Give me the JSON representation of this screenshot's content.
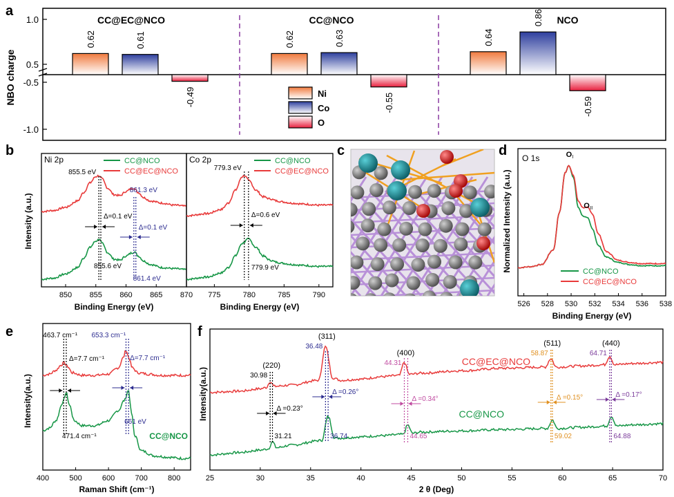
{
  "colors": {
    "red": "#e83a3a",
    "green": "#169646",
    "navy": "#2b2b8f",
    "pink": "#c04aa0",
    "orange": "#e09020",
    "purple": "#7a3a9a",
    "ni_top": "#f07a3e",
    "co_top": "#2e3f9e",
    "o_top": "#e8203e",
    "bond_orange": "#f0a020",
    "bond_purple": "#b890d8",
    "atom_gray": "#707070",
    "atom_teal": "#11828c",
    "atom_red": "#dd2020"
  },
  "chart_data": [
    {
      "id": "a",
      "panel_label": "a",
      "type": "bar",
      "ylabel": "NBO charge",
      "y_ticks": [
        "1.0",
        "0.5",
        "-0.5",
        "-1.0"
      ],
      "groups": [
        {
          "name": "CC@EC@NCO",
          "values": [
            {
              "el": "Ni",
              "v": 0.62,
              "label": "0.62"
            },
            {
              "el": "Co",
              "v": 0.61,
              "label": "0.61"
            },
            {
              "el": "O",
              "v": -0.49,
              "label": "-0.49"
            }
          ]
        },
        {
          "name": "CC@NCO",
          "values": [
            {
              "el": "Ni",
              "v": 0.62,
              "label": "0.62"
            },
            {
              "el": "Co",
              "v": 0.63,
              "label": "0.63"
            },
            {
              "el": "O",
              "v": -0.55,
              "label": "-0.55"
            }
          ]
        },
        {
          "name": "NCO",
          "values": [
            {
              "el": "Ni",
              "v": 0.64,
              "label": "0.64"
            },
            {
              "el": "Co",
              "v": 0.86,
              "label": "0.86"
            },
            {
              "el": "O",
              "v": -0.59,
              "label": "-0.59"
            }
          ]
        }
      ],
      "legend": [
        "Ni",
        "Co",
        "O"
      ]
    },
    {
      "id": "b1",
      "panel_label": "b",
      "type": "line",
      "title": "Ni 2p",
      "xlabel": "Binding Energy (eV)",
      "ylabel": "Intensity (a.u.)",
      "xlim": [
        846,
        870
      ],
      "x_ticks": [
        850,
        855,
        860,
        865,
        870
      ],
      "legend": [
        "CC@NCO",
        "CC@EC@NCO"
      ],
      "annotations": [
        "855.5 eV",
        "861.3 eV",
        "Δ=0.1 eV",
        "Δ=0.1 eV",
        "855.6 eV",
        "861.4 eV"
      ],
      "series": [
        {
          "name": "CC@EC@NCO",
          "x": [
            846,
            848,
            850,
            852,
            853,
            854,
            855,
            855.5,
            856,
            857,
            858,
            859,
            860,
            861,
            861.3,
            862,
            863,
            864,
            866,
            868,
            870
          ],
          "y": [
            0.66,
            0.67,
            0.7,
            0.76,
            0.84,
            0.93,
            0.99,
            1.0,
            0.97,
            0.88,
            0.82,
            0.81,
            0.85,
            0.88,
            0.88,
            0.84,
            0.79,
            0.76,
            0.74,
            0.72,
            0.71
          ]
        },
        {
          "name": "CC@NCO",
          "x": [
            846,
            848,
            850,
            852,
            853,
            854,
            855,
            855.6,
            856,
            857,
            858,
            859,
            860,
            861,
            861.4,
            862,
            863,
            864,
            866,
            868,
            870
          ],
          "y": [
            0.02,
            0.03,
            0.07,
            0.13,
            0.22,
            0.32,
            0.38,
            0.4,
            0.36,
            0.27,
            0.21,
            0.2,
            0.24,
            0.27,
            0.28,
            0.24,
            0.19,
            0.16,
            0.13,
            0.12,
            0.11
          ]
        }
      ]
    },
    {
      "id": "b2",
      "type": "line",
      "title": "Co 2p",
      "xlabel": "Binding Energy (eV)",
      "xlim": [
        771,
        792
      ],
      "x_ticks": [
        775,
        780,
        785,
        790
      ],
      "legend": [
        "CC@NCO",
        "CC@EC@NCO"
      ],
      "annotations": [
        "779.3 eV",
        "Δ=0.6 eV",
        "779.9 eV"
      ],
      "series": [
        {
          "name": "CC@EC@NCO",
          "x": [
            771,
            774,
            776,
            777,
            778,
            779,
            779.3,
            780,
            781,
            782,
            783,
            784,
            785,
            786,
            788,
            790,
            792
          ],
          "y": [
            0.62,
            0.64,
            0.68,
            0.74,
            0.86,
            0.99,
            1.0,
            0.95,
            0.86,
            0.8,
            0.78,
            0.76,
            0.75,
            0.74,
            0.73,
            0.72,
            0.72
          ]
        },
        {
          "name": "CC@NCO",
          "x": [
            771,
            774,
            776,
            777,
            778,
            779,
            779.9,
            781,
            782,
            783,
            784,
            785,
            786,
            788,
            790,
            792
          ],
          "y": [
            0.02,
            0.04,
            0.08,
            0.13,
            0.24,
            0.36,
            0.4,
            0.32,
            0.24,
            0.2,
            0.18,
            0.17,
            0.16,
            0.15,
            0.14,
            0.14
          ]
        }
      ]
    },
    {
      "id": "d",
      "panel_label": "d",
      "type": "line",
      "title": "O 1s",
      "xlabel": "Binding Energy (eV)",
      "ylabel": "Normalized Intensity (a.u.)",
      "xlim": [
        525.5,
        538
      ],
      "x_ticks": [
        526,
        528,
        530,
        532,
        534,
        536,
        538
      ],
      "peak_labels": [
        "O",
        "O"
      ],
      "peak_subscripts": [
        "I",
        "II"
      ],
      "legend": [
        "CC@NCO",
        "CC@EC@NCO"
      ],
      "series": [
        {
          "name": "CC@NCO",
          "x": [
            525.5,
            526.5,
            527.5,
            528.5,
            529,
            529.5,
            529.8,
            530.2,
            530.6,
            531,
            531.4,
            531.8,
            532.3,
            533,
            534,
            535,
            536,
            537,
            538
          ],
          "y": [
            0.03,
            0.04,
            0.06,
            0.2,
            0.55,
            0.93,
            1.0,
            0.88,
            0.6,
            0.52,
            0.5,
            0.4,
            0.24,
            0.13,
            0.08,
            0.06,
            0.05,
            0.05,
            0.05
          ]
        },
        {
          "name": "CC@EC@NCO",
          "x": [
            525.5,
            526.5,
            527.5,
            528.5,
            529,
            529.5,
            529.8,
            530.2,
            530.6,
            531,
            531.4,
            531.8,
            532.3,
            533,
            534,
            535,
            536,
            537,
            538
          ],
          "y": [
            0.03,
            0.04,
            0.06,
            0.2,
            0.55,
            0.93,
            1.0,
            0.9,
            0.66,
            0.6,
            0.6,
            0.54,
            0.35,
            0.18,
            0.1,
            0.08,
            0.07,
            0.07,
            0.07
          ]
        }
      ]
    },
    {
      "id": "e",
      "panel_label": "e",
      "type": "line",
      "xlabel": "Raman Shift (cm⁻¹)",
      "ylabel": "Intensity(a.u.)",
      "xlim": [
        400,
        850
      ],
      "x_ticks": [
        400,
        500,
        600,
        700,
        800
      ],
      "annotations": [
        "463.7 cm⁻¹",
        "653.3 cm⁻¹",
        "Δ=7.7 cm⁻¹",
        "Δ=7.7 cm⁻¹",
        "471.4 cm⁻¹",
        "661 eV"
      ],
      "series_label": "CC@NCO",
      "series": [
        {
          "name": "CC@EC@NCO",
          "x": [
            400,
            420,
            440,
            455,
            464,
            475,
            490,
            520,
            560,
            600,
            630,
            645,
            653,
            662,
            672,
            690,
            720,
            760,
            800,
            850
          ],
          "y": [
            0.72,
            0.73,
            0.76,
            0.8,
            0.82,
            0.79,
            0.74,
            0.72,
            0.72,
            0.73,
            0.78,
            0.86,
            0.92,
            0.86,
            0.78,
            0.74,
            0.73,
            0.72,
            0.72,
            0.72
          ]
        },
        {
          "name": "CC@NCO",
          "x": [
            400,
            420,
            440,
            460,
            471,
            482,
            495,
            520,
            560,
            600,
            630,
            648,
            661,
            670,
            680,
            700,
            740,
            780,
            820,
            850
          ],
          "y": [
            0.28,
            0.3,
            0.36,
            0.5,
            0.58,
            0.48,
            0.36,
            0.32,
            0.32,
            0.36,
            0.44,
            0.52,
            0.6,
            0.42,
            0.24,
            0.12,
            0.08,
            0.07,
            0.06,
            0.06
          ]
        }
      ]
    },
    {
      "id": "f",
      "panel_label": "f",
      "type": "line",
      "xlabel": "2 θ (Deg)",
      "ylabel": "Intensity(a.u.)",
      "xlim": [
        25,
        70
      ],
      "x_ticks": [
        25,
        30,
        35,
        40,
        45,
        50,
        55,
        60,
        65,
        70
      ],
      "series_labels": [
        "CC@EC@NCO",
        "CC@NCO"
      ],
      "hkl": [
        "(220)",
        "(311)",
        "(400)",
        "(511)",
        "(440)"
      ],
      "peaks_ecnco": [
        "30.98",
        "36.48",
        "44.31",
        "58.87",
        "64.71"
      ],
      "peaks_nco": [
        "31.21",
        "36.74",
        "44.65",
        "59.02",
        "64.88"
      ],
      "deltas": [
        "Δ =0.23°",
        "Δ =0.26°",
        "Δ =0.34°",
        "Δ =0.15°",
        "Δ =0.17°"
      ],
      "series": [
        {
          "name": "CC@EC@NCO",
          "x": [
            25,
            28,
            30,
            30.6,
            30.98,
            31.4,
            33,
            35.8,
            36.48,
            37.2,
            38,
            40,
            42,
            43.8,
            44.31,
            44.8,
            46,
            50,
            54,
            58.3,
            58.87,
            59.4,
            62,
            64.2,
            64.71,
            65.2,
            67,
            70
          ],
          "y": [
            0.6,
            0.61,
            0.63,
            0.64,
            0.69,
            0.65,
            0.66,
            0.7,
            0.98,
            0.72,
            0.7,
            0.71,
            0.73,
            0.74,
            0.85,
            0.75,
            0.76,
            0.78,
            0.8,
            0.81,
            0.88,
            0.81,
            0.82,
            0.83,
            0.9,
            0.83,
            0.84,
            0.85
          ]
        },
        {
          "name": "CC@NCO",
          "x": [
            25,
            28,
            30,
            30.8,
            31.21,
            31.6,
            33,
            36.1,
            36.74,
            37.4,
            38,
            40,
            42,
            44.2,
            44.65,
            45.1,
            46,
            50,
            54,
            58.5,
            59.02,
            59.5,
            62,
            64.4,
            64.88,
            65.4,
            67,
            70
          ],
          "y": [
            0.08,
            0.1,
            0.12,
            0.13,
            0.19,
            0.14,
            0.16,
            0.2,
            0.4,
            0.22,
            0.22,
            0.23,
            0.24,
            0.25,
            0.33,
            0.26,
            0.27,
            0.28,
            0.29,
            0.3,
            0.37,
            0.3,
            0.31,
            0.32,
            0.4,
            0.32,
            0.33,
            0.34
          ]
        }
      ]
    }
  ],
  "panel_c": {
    "label": "c"
  }
}
